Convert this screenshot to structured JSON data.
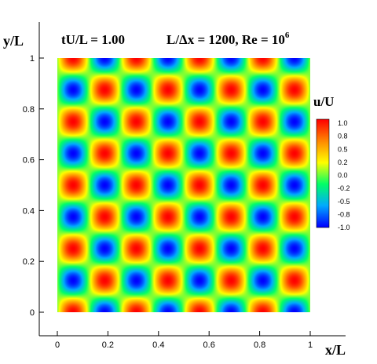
{
  "chart_data": {
    "type": "heatmap",
    "field": "u/U = sin(2πkx)·cos(2πky)",
    "mode_number": 4,
    "title_left": "tU/L = 1.00",
    "title_right_prefix": "L/Δx = 1200,   Re = 10",
    "title_right_exp": "6",
    "xlabel": "x/L",
    "ylabel": "y/L",
    "xlim": [
      0,
      1
    ],
    "ylim": [
      0,
      1
    ],
    "xticks": [
      "0",
      "0.2",
      "0.4",
      "0.6",
      "0.8",
      "1"
    ],
    "yticks": [
      "0",
      "0.2",
      "0.4",
      "0.6",
      "0.8",
      "1"
    ],
    "colorbar": {
      "label": "u/U",
      "range": [
        -1.0,
        1.0
      ],
      "ticks": [
        "1.0",
        "0.8",
        "0.5",
        "0.2",
        "0.0",
        "-0.2",
        "-0.5",
        "-0.8",
        "-1.0"
      ],
      "colormap": [
        "#0000ff",
        "#00aaff",
        "#00ff66",
        "#ffff00",
        "#ff8800",
        "#ff0000"
      ]
    }
  }
}
